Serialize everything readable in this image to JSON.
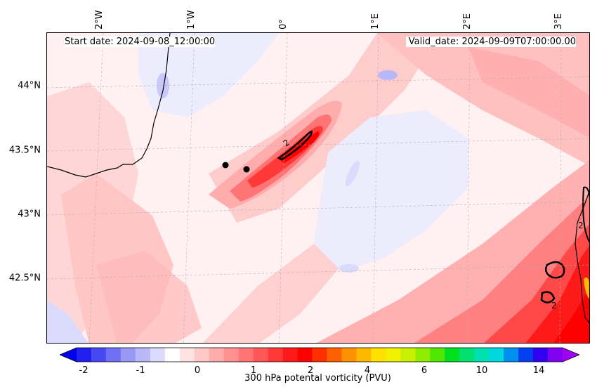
{
  "header": {
    "start_date": "Start date: 2024-09-08_12:00:00",
    "valid_date": "Valid_date: 2024-09-09T07:00:00.00"
  },
  "map": {
    "lat_labels": [
      "44°N",
      "43.5°N",
      "43°N",
      "42.5°N"
    ],
    "lon_labels": [
      "2°W",
      "1°W",
      "0°",
      "1°E",
      "2°E",
      "3°E"
    ],
    "contour_label": "2",
    "markers": [
      {
        "name": "marker-west",
        "lon": -0.6,
        "lat": 43.39
      },
      {
        "name": "marker-east",
        "lon": -0.38,
        "lat": 43.36
      }
    ]
  },
  "colorbar": {
    "title": "300 hPa potental vorticity (PVU)",
    "ticks": [
      "-2",
      "-1",
      "0",
      "1",
      "2",
      "4",
      "6",
      "10",
      "14"
    ],
    "colors": [
      "#0000ee",
      "#2020f0",
      "#4848f2",
      "#7070f4",
      "#9898f6",
      "#b8b8f8",
      "#dadafc",
      "#ffffff",
      "#ffe2e2",
      "#ffc8c8",
      "#ffacac",
      "#ff9090",
      "#ff7474",
      "#ff5656",
      "#ff3838",
      "#ff1a1a",
      "#ff0000",
      "#ff3000",
      "#ff6000",
      "#ff9000",
      "#ffb800",
      "#ffe000",
      "#f0f000",
      "#c8f000",
      "#90ec00",
      "#50e800",
      "#00e020",
      "#00e070",
      "#00e0b0",
      "#00d8e0",
      "#0090f0",
      "#0040f0",
      "#3000f0",
      "#8000f0",
      "#a000f8"
    ]
  }
}
